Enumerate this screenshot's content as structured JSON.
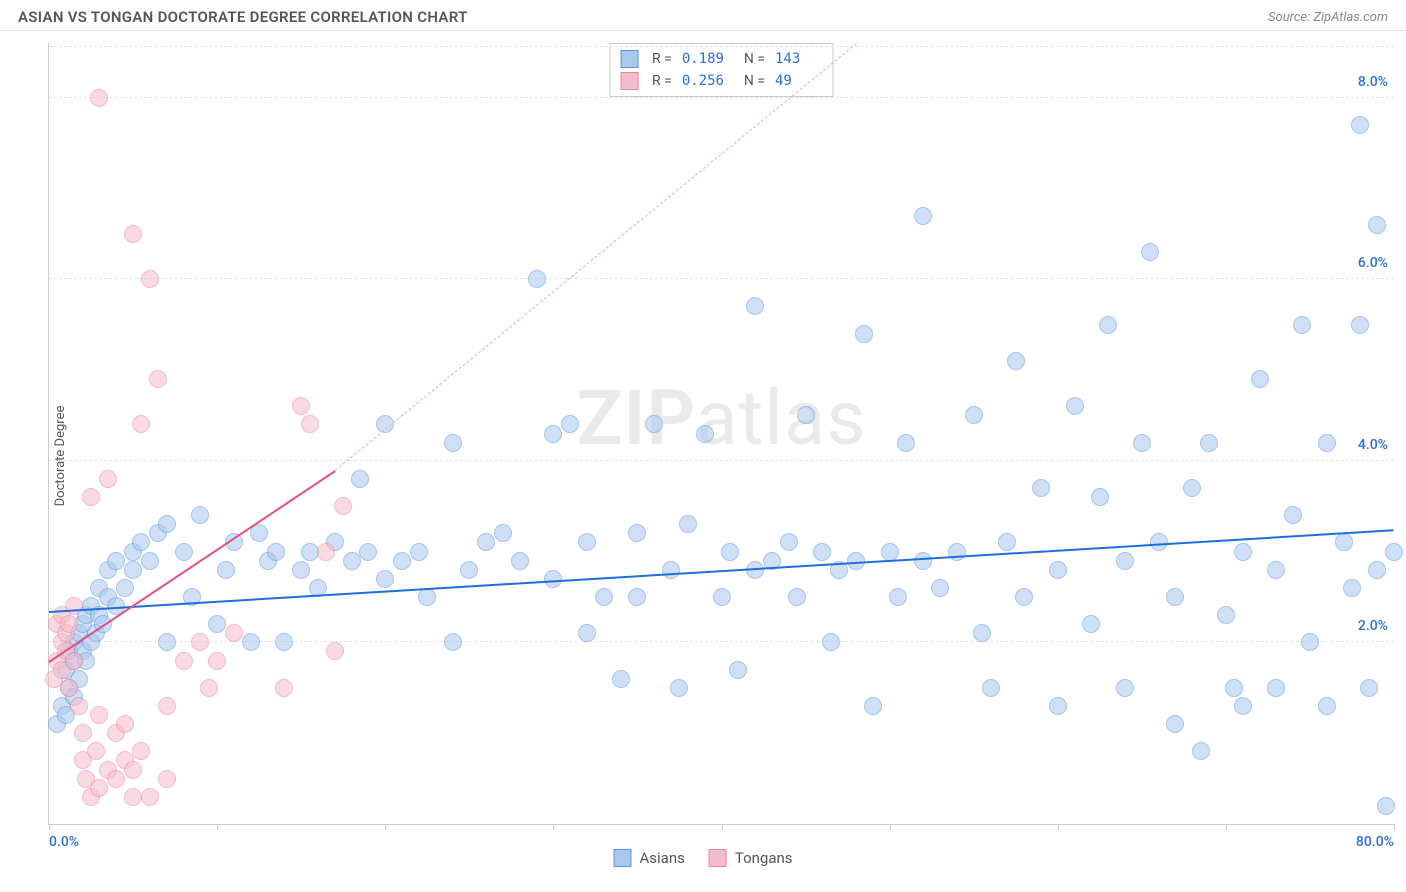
{
  "title": "ASIAN VS TONGAN DOCTORATE DEGREE CORRELATION CHART",
  "source_prefix": "Source: ",
  "source_name": "ZipAtlas.com",
  "ylabel": "Doctorate Degree",
  "watermark_bold": "ZIP",
  "watermark_rest": "atlas",
  "chart": {
    "type": "scatter",
    "xlim": [
      0,
      80
    ],
    "ylim": [
      0,
      8.6
    ],
    "xtick_positions": [
      0,
      10,
      20,
      30,
      40,
      50,
      60,
      70,
      80
    ],
    "xtick_labels_visible": {
      "0": "0.0%",
      "80": "80.0%"
    },
    "ytick_positions": [
      2.0,
      4.0,
      6.0,
      8.0
    ],
    "ytick_labels": [
      "2.0%",
      "4.0%",
      "6.0%",
      "8.0%"
    ],
    "grid_color": "#e4e4e4",
    "background_color": "#ffffff",
    "axis_color": "#cccccc",
    "xtick_label_color": "#2d6fd6",
    "ytick_label_color": "#2d6fd6",
    "marker_radius": 9,
    "marker_opacity": 0.55,
    "series": [
      {
        "name": "Asians",
        "color_fill": "#a8c8ef",
        "color_stroke": "#5a96db",
        "R": "0.189",
        "N": "143",
        "stat_color": "#2d6fd6",
        "regression": {
          "x1": 0,
          "y1": 2.35,
          "x2": 80,
          "y2": 3.25,
          "color": "#1e6fdc",
          "width": 2.5,
          "dash": false
        },
        "points": [
          [
            0.5,
            1.1
          ],
          [
            0.8,
            1.3
          ],
          [
            1.0,
            1.2
          ],
          [
            1.0,
            1.7
          ],
          [
            1.2,
            1.5
          ],
          [
            1.2,
            1.9
          ],
          [
            1.5,
            1.4
          ],
          [
            1.5,
            1.8
          ],
          [
            1.5,
            2.0
          ],
          [
            1.8,
            1.6
          ],
          [
            1.8,
            2.1
          ],
          [
            2.0,
            1.9
          ],
          [
            2.0,
            2.2
          ],
          [
            2.2,
            1.8
          ],
          [
            2.2,
            2.3
          ],
          [
            2.5,
            2.0
          ],
          [
            2.5,
            2.4
          ],
          [
            2.8,
            2.1
          ],
          [
            3.0,
            2.3
          ],
          [
            3.0,
            2.6
          ],
          [
            3.2,
            2.2
          ],
          [
            3.5,
            2.5
          ],
          [
            3.5,
            2.8
          ],
          [
            4.0,
            2.4
          ],
          [
            4.0,
            2.9
          ],
          [
            4.5,
            2.6
          ],
          [
            5.0,
            2.8
          ],
          [
            5.0,
            3.0
          ],
          [
            5.5,
            3.1
          ],
          [
            6.0,
            2.9
          ],
          [
            6.5,
            3.2
          ],
          [
            7.0,
            2.0
          ],
          [
            7.0,
            3.3
          ],
          [
            8.0,
            3.0
          ],
          [
            8.5,
            2.5
          ],
          [
            9.0,
            3.4
          ],
          [
            10.0,
            2.2
          ],
          [
            10.5,
            2.8
          ],
          [
            11.0,
            3.1
          ],
          [
            12.0,
            2.0
          ],
          [
            12.5,
            3.2
          ],
          [
            13.0,
            2.9
          ],
          [
            13.5,
            3.0
          ],
          [
            14.0,
            2.0
          ],
          [
            15.0,
            2.8
          ],
          [
            15.5,
            3.0
          ],
          [
            16.0,
            2.6
          ],
          [
            17.0,
            3.1
          ],
          [
            18.0,
            2.9
          ],
          [
            18.5,
            3.8
          ],
          [
            19.0,
            3.0
          ],
          [
            20.0,
            2.7
          ],
          [
            20.0,
            4.4
          ],
          [
            21.0,
            2.9
          ],
          [
            22.0,
            3.0
          ],
          [
            22.5,
            2.5
          ],
          [
            24.0,
            4.2
          ],
          [
            24.0,
            2.0
          ],
          [
            25.0,
            2.8
          ],
          [
            26.0,
            3.1
          ],
          [
            27.0,
            3.2
          ],
          [
            28.0,
            2.9
          ],
          [
            29.0,
            6.0
          ],
          [
            30.0,
            2.7
          ],
          [
            30.0,
            4.3
          ],
          [
            31.0,
            4.4
          ],
          [
            32.0,
            2.1
          ],
          [
            32.0,
            3.1
          ],
          [
            33.0,
            2.5
          ],
          [
            34.0,
            1.6
          ],
          [
            35.0,
            3.2
          ],
          [
            35.0,
            2.5
          ],
          [
            36.0,
            4.4
          ],
          [
            37.0,
            2.8
          ],
          [
            37.5,
            1.5
          ],
          [
            38.0,
            3.3
          ],
          [
            39.0,
            4.3
          ],
          [
            40.0,
            2.5
          ],
          [
            40.5,
            3.0
          ],
          [
            41.0,
            1.7
          ],
          [
            42.0,
            2.8
          ],
          [
            42.0,
            5.7
          ],
          [
            43.0,
            2.9
          ],
          [
            44.0,
            3.1
          ],
          [
            44.5,
            2.5
          ],
          [
            45.0,
            4.5
          ],
          [
            46.0,
            3.0
          ],
          [
            46.5,
            2.0
          ],
          [
            47.0,
            2.8
          ],
          [
            48.0,
            2.9
          ],
          [
            48.5,
            5.4
          ],
          [
            49.0,
            1.3
          ],
          [
            50.0,
            3.0
          ],
          [
            50.5,
            2.5
          ],
          [
            51.0,
            4.2
          ],
          [
            52.0,
            2.9
          ],
          [
            52.0,
            6.7
          ],
          [
            53.0,
            2.6
          ],
          [
            54.0,
            3.0
          ],
          [
            55.0,
            4.5
          ],
          [
            55.5,
            2.1
          ],
          [
            56.0,
            1.5
          ],
          [
            57.0,
            3.1
          ],
          [
            57.5,
            5.1
          ],
          [
            58.0,
            2.5
          ],
          [
            59.0,
            3.7
          ],
          [
            60.0,
            2.8
          ],
          [
            60.0,
            1.3
          ],
          [
            61.0,
            4.6
          ],
          [
            62.0,
            2.2
          ],
          [
            62.5,
            3.6
          ],
          [
            63.0,
            5.5
          ],
          [
            64.0,
            1.5
          ],
          [
            64.0,
            2.9
          ],
          [
            65.0,
            4.2
          ],
          [
            65.5,
            6.3
          ],
          [
            66.0,
            3.1
          ],
          [
            67.0,
            2.5
          ],
          [
            67.0,
            1.1
          ],
          [
            68.0,
            3.7
          ],
          [
            68.5,
            0.8
          ],
          [
            69.0,
            4.2
          ],
          [
            70.0,
            2.3
          ],
          [
            70.5,
            1.5
          ],
          [
            71.0,
            3.0
          ],
          [
            71.0,
            1.3
          ],
          [
            72.0,
            4.9
          ],
          [
            73.0,
            2.8
          ],
          [
            73.0,
            1.5
          ],
          [
            74.0,
            3.4
          ],
          [
            74.5,
            5.5
          ],
          [
            75.0,
            2.0
          ],
          [
            76.0,
            4.2
          ],
          [
            76.0,
            1.3
          ],
          [
            77.0,
            3.1
          ],
          [
            77.5,
            2.6
          ],
          [
            78.0,
            7.7
          ],
          [
            78.0,
            5.5
          ],
          [
            78.5,
            1.5
          ],
          [
            79.0,
            6.6
          ],
          [
            79.0,
            2.8
          ],
          [
            79.5,
            0.2
          ],
          [
            80.0,
            3.0
          ]
        ]
      },
      {
        "name": "Tongans",
        "color_fill": "#f5bccb",
        "color_stroke": "#e986a3",
        "R": "0.256",
        "N": "49",
        "stat_color": "#2d6fd6",
        "regression_solid": {
          "x1": 0,
          "y1": 1.8,
          "x2": 17,
          "y2": 3.9,
          "color": "#e05080",
          "width": 2.5,
          "dash": false
        },
        "regression_dash": {
          "x1": 17,
          "y1": 3.9,
          "x2": 48,
          "y2": 8.6,
          "color": "#f0a8bc",
          "width": 1.5,
          "dash": true
        },
        "points": [
          [
            0.3,
            1.6
          ],
          [
            0.5,
            1.8
          ],
          [
            0.5,
            2.2
          ],
          [
            0.8,
            1.7
          ],
          [
            0.8,
            2.0
          ],
          [
            0.8,
            2.3
          ],
          [
            1.0,
            1.9
          ],
          [
            1.0,
            2.1
          ],
          [
            1.2,
            1.5
          ],
          [
            1.2,
            2.2
          ],
          [
            1.5,
            1.8
          ],
          [
            1.5,
            2.4
          ],
          [
            1.8,
            1.3
          ],
          [
            2.0,
            0.7
          ],
          [
            2.0,
            1.0
          ],
          [
            2.2,
            0.5
          ],
          [
            2.5,
            0.3
          ],
          [
            2.5,
            3.6
          ],
          [
            2.8,
            0.8
          ],
          [
            3.0,
            1.2
          ],
          [
            3.0,
            0.4
          ],
          [
            3.0,
            8.0
          ],
          [
            3.5,
            0.6
          ],
          [
            3.5,
            3.8
          ],
          [
            4.0,
            0.5
          ],
          [
            4.0,
            1.0
          ],
          [
            4.5,
            0.7
          ],
          [
            4.5,
            1.1
          ],
          [
            5.0,
            0.3
          ],
          [
            5.0,
            0.6
          ],
          [
            5.0,
            6.5
          ],
          [
            5.5,
            0.8
          ],
          [
            5.5,
            4.4
          ],
          [
            6.0,
            0.3
          ],
          [
            6.0,
            6.0
          ],
          [
            6.5,
            4.9
          ],
          [
            7.0,
            0.5
          ],
          [
            7.0,
            1.3
          ],
          [
            8.0,
            1.8
          ],
          [
            9.0,
            2.0
          ],
          [
            9.5,
            1.5
          ],
          [
            10.0,
            1.8
          ],
          [
            11.0,
            2.1
          ],
          [
            14.0,
            1.5
          ],
          [
            15.0,
            4.6
          ],
          [
            15.5,
            4.4
          ],
          [
            16.5,
            3.0
          ],
          [
            17.0,
            1.9
          ],
          [
            17.5,
            3.5
          ]
        ]
      }
    ]
  },
  "stats_labels": {
    "R": "R = ",
    "N": "N = "
  },
  "legend_items": [
    {
      "label": "Asians",
      "fill": "#a8c8ef",
      "stroke": "#5a96db"
    },
    {
      "label": "Tongans",
      "fill": "#f5bccb",
      "stroke": "#e986a3"
    }
  ]
}
